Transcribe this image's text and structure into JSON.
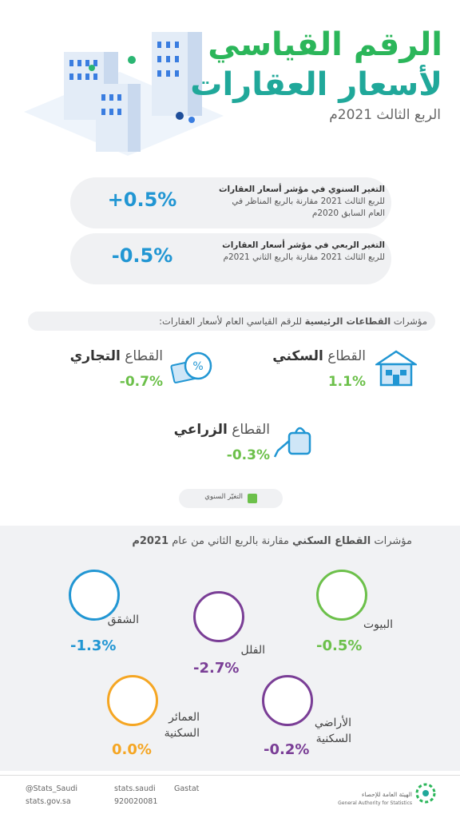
{
  "header": {
    "title_line1": "الرقم القياسي",
    "title_line2": "لأسعار العقارات",
    "subtitle": "الربع الثالث 2021م"
  },
  "changes": [
    {
      "value": "+0.5%",
      "bold": "التغير السنوي في مؤشر أسعار العقارات",
      "rest": "للربع الثالث 2021 مقارنة بالربع المناظر في العام السابق 2020م"
    },
    {
      "value": "-0.5%",
      "bold": "التغير الربعي في مؤشر أسعار العقارات",
      "rest": "للربع الثالث 2021 مقارنة بالربع الثاني 2021م"
    }
  ],
  "sectors": {
    "heading_prefix": "مؤشرات",
    "heading_bold": "القطاعات الرئيسية",
    "heading_rest": "للرقم القياسي العام لأسعار العقارات:",
    "items": [
      {
        "prefix": "القطاع",
        "bold": "السكني",
        "value": "1.1%"
      },
      {
        "prefix": "القطاع",
        "bold": "التجاري",
        "value": "-0.7%"
      },
      {
        "prefix": "القطاع",
        "bold": "الزراعي",
        "value": "-0.3%"
      }
    ],
    "legend": "التغيّر السنوي"
  },
  "residential": {
    "heading_prefix": "مؤشرات",
    "heading_bold": "القطاع السكني",
    "heading_rest": "مقارنة بالربع الثاني من عام",
    "heading_year": "2021م",
    "items": [
      {
        "label": "البيوت",
        "value": "-0.5%"
      },
      {
        "label": "الشقق",
        "value": "-1.3%"
      },
      {
        "label": "الفلل",
        "value": "-2.7%"
      },
      {
        "label": "الأراضي السكنية",
        "value": "-0.2%"
      },
      {
        "label": "العمائر السكنية",
        "value": "0.0%"
      }
    ]
  },
  "footer": {
    "twitter": "@Stats_Saudi",
    "instagram": "stats.saudi",
    "linkedin": "Gastat",
    "website": "stats.gov.sa",
    "phone": "920020081",
    "org_ar": "الهيئة العامة للإحصاء",
    "org_en": "General Authority for Statistics"
  }
}
